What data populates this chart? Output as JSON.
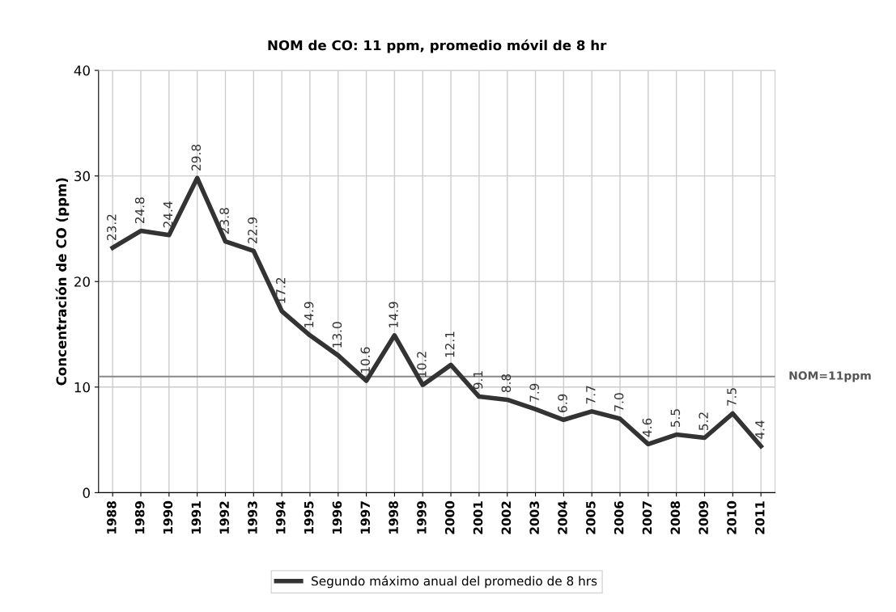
{
  "chart_data": {
    "type": "line",
    "title": "NOM de CO: 11 ppm, promedio móvil de 8 hr",
    "ylabel": "Concentración de CO (ppm)",
    "categories": [
      "1988",
      "1989",
      "1990",
      "1991",
      "1992",
      "1993",
      "1994",
      "1995",
      "1996",
      "1997",
      "1998",
      "1999",
      "2000",
      "2001",
      "2002",
      "2003",
      "2004",
      "2005",
      "2006",
      "2007",
      "2008",
      "2009",
      "2010",
      "2011"
    ],
    "series": [
      {
        "name": "Segundo máximo anual del promedio de 8 hrs",
        "color": "#333333",
        "values": [
          23.2,
          24.8,
          24.4,
          29.8,
          23.8,
          22.9,
          17.2,
          14.9,
          13.0,
          10.6,
          14.9,
          10.2,
          12.1,
          9.1,
          8.8,
          7.9,
          6.9,
          7.7,
          7.0,
          4.6,
          5.5,
          5.2,
          7.5,
          4.4
        ],
        "value_labels": [
          "23.2",
          "24.8",
          "24.4",
          "29.8",
          "23.8",
          "22.9",
          "17.2",
          "14.9",
          "13.0",
          "10.6",
          "14.9",
          "10.2",
          "12.1",
          "9.1",
          "8.8",
          "7.9",
          "6.9",
          "7.7",
          "7.0",
          "4.6",
          "5.5",
          "5.2",
          "7.5",
          "4.4"
        ]
      }
    ],
    "ylim": [
      0,
      40
    ],
    "yticks": [
      0,
      10,
      20,
      30,
      40
    ],
    "grid": true,
    "legend": "bottom",
    "marker": "none",
    "line_style": "solid",
    "ref_lines": [
      {
        "axis": "y",
        "value": 11,
        "label": "NOM=11ppm",
        "color": "#888888"
      }
    ]
  }
}
